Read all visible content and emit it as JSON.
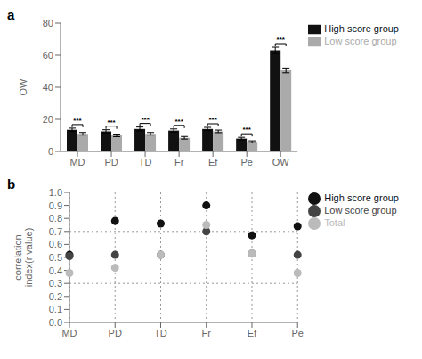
{
  "chart_data": [
    {
      "type": "bar",
      "title": "a",
      "categories": [
        "MD",
        "PD",
        "TD",
        "Fr",
        "Ef",
        "Pe",
        "OW"
      ],
      "series": [
        {
          "name": "High score group",
          "color": "#111111",
          "values": [
            13.5,
            12.5,
            14.0,
            13.0,
            14.0,
            8.0,
            63.0
          ],
          "errors": [
            1.0,
            1.0,
            1.2,
            1.0,
            1.0,
            0.8,
            2.0
          ]
        },
        {
          "name": "Low score group",
          "color": "#aaaaaa",
          "values": [
            11.0,
            10.0,
            11.0,
            8.5,
            12.5,
            6.0,
            50.5
          ],
          "errors": [
            0.8,
            0.8,
            0.8,
            0.8,
            0.8,
            0.6,
            1.5
          ]
        }
      ],
      "ylabel": "OW",
      "ylim": [
        0,
        80
      ],
      "yticks": [
        0,
        20,
        40,
        60,
        80
      ],
      "annotations": [
        {
          "x": "MD",
          "text": "***"
        },
        {
          "x": "PD",
          "text": "***"
        },
        {
          "x": "TD",
          "text": "***"
        },
        {
          "x": "Fr",
          "text": "***"
        },
        {
          "x": "Ef",
          "text": "***"
        },
        {
          "x": "Pe",
          "text": "***"
        },
        {
          "x": "OW",
          "text": "***"
        }
      ],
      "legend": "right"
    },
    {
      "type": "scatter",
      "title": "b",
      "categories": [
        "MD",
        "PD",
        "TD",
        "Fr",
        "Ef",
        "Pe"
      ],
      "series": [
        {
          "name": "High score group",
          "color": "#111111",
          "values": [
            0.52,
            0.78,
            0.76,
            0.9,
            0.67,
            0.74
          ]
        },
        {
          "name": "Low score group",
          "color": "#444444",
          "values": [
            0.51,
            0.52,
            0.52,
            0.7,
            0.53,
            0.52
          ]
        },
        {
          "name": "Total",
          "color": "#bbbbbb",
          "values": [
            0.38,
            0.42,
            0.52,
            0.75,
            0.53,
            0.38
          ]
        }
      ],
      "ylabel": "correlation\nindex(r value)",
      "ylim": [
        0.0,
        1.0
      ],
      "yticks": [
        {
          "value": 0.0,
          "label": "0.0"
        },
        0.1,
        0.2,
        0.3,
        0.4,
        0.5,
        0.6,
        0.7,
        0.8,
        0.9,
        {
          "value": 1.0,
          "label": "1.0"
        }
      ],
      "reference_lines": [
        0.3,
        0.7
      ],
      "grid": "x",
      "legend": "right"
    }
  ]
}
